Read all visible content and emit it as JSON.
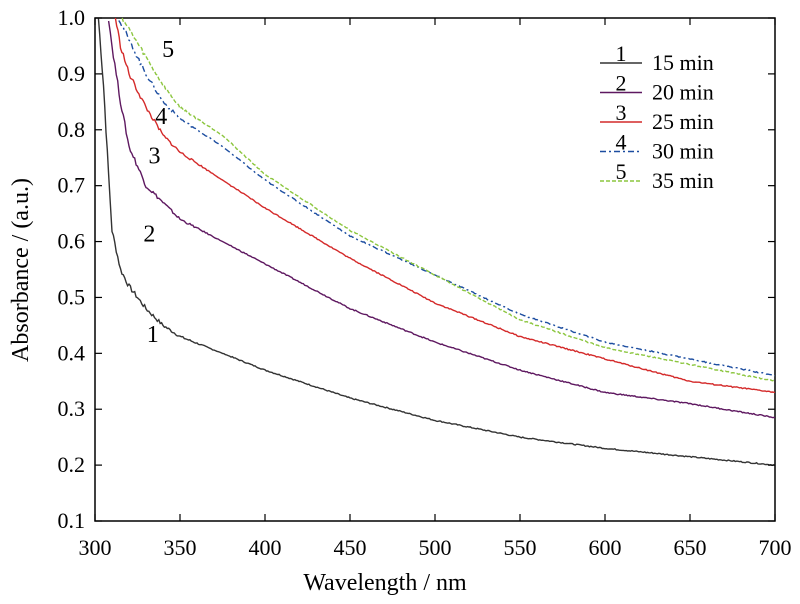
{
  "chart_data": {
    "type": "line",
    "xlabel": "Wavelength / nm",
    "ylabel": "Absorbance / (a.u.)",
    "xlim": [
      300,
      700
    ],
    "ylim": [
      0.1,
      1.0
    ],
    "xticks": [
      300,
      350,
      400,
      450,
      500,
      550,
      600,
      650,
      700
    ],
    "yticks": [
      0.1,
      0.2,
      0.3,
      0.4,
      0.5,
      0.6,
      0.7,
      0.8,
      0.9,
      1.0
    ],
    "grid": false,
    "legend_position": "top-right",
    "series": [
      {
        "name": "15 min",
        "legend_number": "1",
        "color": "#333333",
        "dash": "solid",
        "x": [
          302,
          305,
          308,
          310,
          315,
          320,
          330,
          340,
          350,
          375,
          400,
          450,
          500,
          550,
          600,
          650,
          700
        ],
        "y": [
          1.0,
          0.88,
          0.72,
          0.62,
          0.55,
          0.52,
          0.48,
          0.45,
          0.43,
          0.4,
          0.37,
          0.32,
          0.28,
          0.25,
          0.23,
          0.215,
          0.2
        ]
      },
      {
        "name": "20 min",
        "legend_number": "2",
        "color": "#5e1860",
        "dash": "solid",
        "x": [
          308,
          310,
          315,
          320,
          330,
          340,
          350,
          375,
          400,
          450,
          500,
          550,
          600,
          650,
          700
        ],
        "y": [
          1.0,
          0.95,
          0.85,
          0.77,
          0.7,
          0.67,
          0.64,
          0.6,
          0.56,
          0.48,
          0.42,
          0.37,
          0.33,
          0.31,
          0.285
        ]
      },
      {
        "name": "25 min",
        "legend_number": "3",
        "color": "#d42a2a",
        "dash": "solid",
        "x": [
          312,
          315,
          320,
          330,
          340,
          350,
          375,
          400,
          450,
          500,
          550,
          600,
          650,
          700
        ],
        "y": [
          1.0,
          0.95,
          0.9,
          0.84,
          0.79,
          0.76,
          0.71,
          0.66,
          0.57,
          0.49,
          0.43,
          0.39,
          0.35,
          0.33
        ]
      },
      {
        "name": "30 min",
        "legend_number": "4",
        "color": "#1c4da0",
        "dash": "6,3,2,3",
        "x": [
          314,
          320,
          330,
          340,
          350,
          375,
          400,
          450,
          500,
          550,
          600,
          650,
          700
        ],
        "y": [
          1.0,
          0.96,
          0.9,
          0.85,
          0.82,
          0.77,
          0.71,
          0.61,
          0.54,
          0.47,
          0.42,
          0.39,
          0.36
        ]
      },
      {
        "name": "35 min",
        "legend_number": "5",
        "color": "#8cc63f",
        "dash": "4,2",
        "x": [
          316,
          320,
          330,
          340,
          350,
          375,
          400,
          450,
          500,
          550,
          600,
          650,
          700
        ],
        "y": [
          1.0,
          0.98,
          0.93,
          0.88,
          0.84,
          0.79,
          0.72,
          0.62,
          0.54,
          0.46,
          0.41,
          0.38,
          0.35
        ]
      }
    ],
    "curve_labels": [
      {
        "text": "1",
        "x": 334,
        "y": 0.42
      },
      {
        "text": "2",
        "x": 332,
        "y": 0.6
      },
      {
        "text": "3",
        "x": 335,
        "y": 0.74
      },
      {
        "text": "4",
        "x": 339,
        "y": 0.81
      },
      {
        "text": "5",
        "x": 343,
        "y": 0.93
      }
    ]
  }
}
